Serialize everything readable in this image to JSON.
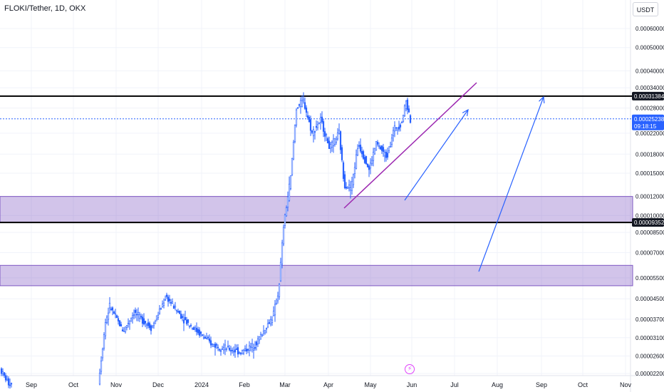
{
  "header": {
    "title": "FLOKI/Tether, 1D, OKX"
  },
  "toolbar": {
    "unit_label": "USDT"
  },
  "chart_data": {
    "type": "candlestick",
    "title": "FLOKI/Tether, 1D, OKX",
    "y_axis_ticks": [
      "0.00060000",
      "0.00050000",
      "0.00040000",
      "0.00034000",
      "0.00028000",
      "0.00022000",
      "0.00018000",
      "0.00015000",
      "0.00012000",
      "0.00010000",
      "0.00008500",
      "0.00007000",
      "0.00005500",
      "0.00004500",
      "0.00003700",
      "0.00003100",
      "0.00002600",
      "0.00002200"
    ],
    "x_axis_ticks": [
      "Sep",
      "Oct",
      "Nov",
      "Dec",
      "2024",
      "Feb",
      "Mar",
      "Apr",
      "May",
      "Jun",
      "Jul",
      "Aug",
      "Sep",
      "Oct",
      "Nov"
    ],
    "y_scale": "log",
    "price_labels": [
      {
        "value": "0.00031384",
        "style": "black"
      },
      {
        "value": "0.00009352",
        "style": "black"
      },
      {
        "value": "0.00025238",
        "style": "blue",
        "sub": "09:18:15"
      }
    ],
    "horizontal_lines": [
      {
        "price": 0.00031384,
        "color": "#000000"
      },
      {
        "price": 9.352e-05,
        "color": "#000000"
      },
      {
        "price": 0.00025238,
        "color": "#2962ff",
        "dashed": true
      }
    ],
    "zones": [
      {
        "top": 0.00012,
        "bottom": 9.352e-05,
        "color": "#7e57c2"
      },
      {
        "top": 6.2e-05,
        "bottom": 5.1e-05,
        "color": "#7e57c2"
      }
    ],
    "colors": {
      "up": "#2962ff",
      "down": "#2962ff",
      "trendline": "#9c27b0",
      "arrow": "#2962ff"
    },
    "event_icon": "lightning-icon"
  }
}
